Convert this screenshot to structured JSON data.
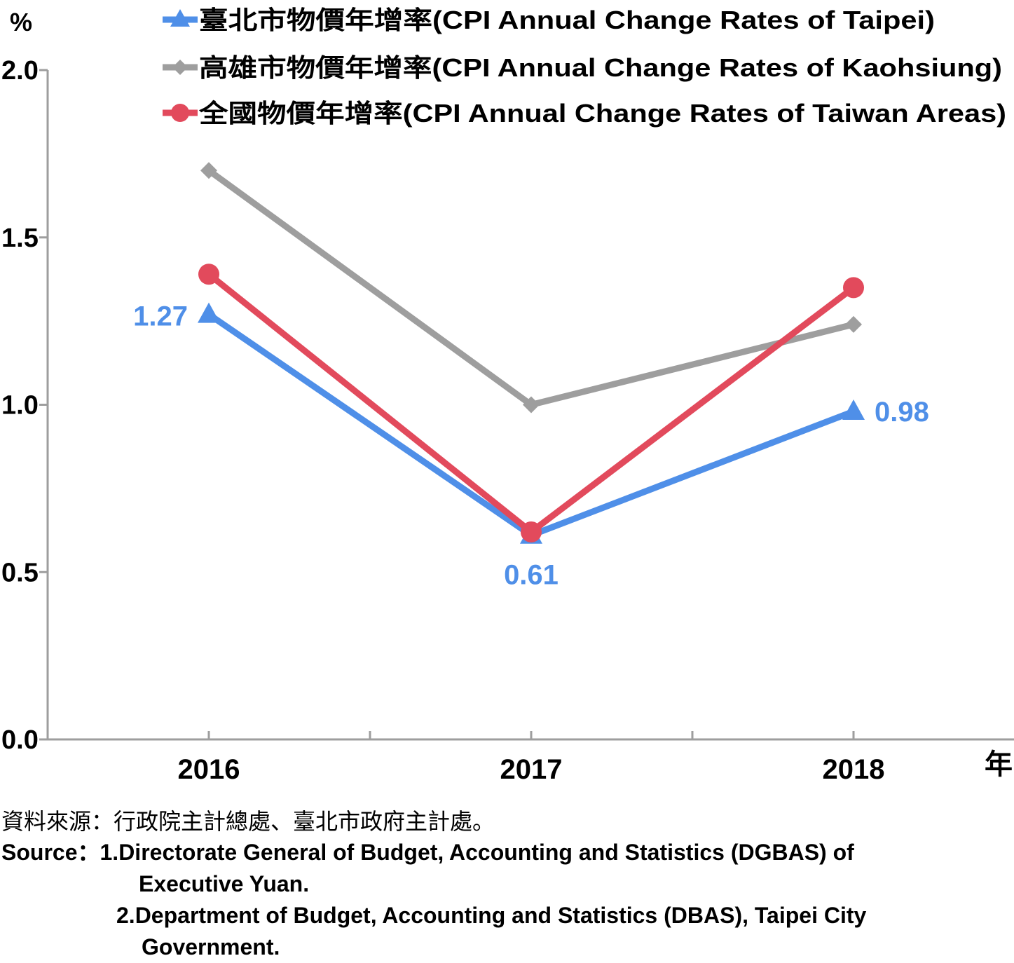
{
  "chart_data": {
    "type": "line",
    "y_unit": "%",
    "x_unit": "年",
    "categories": [
      "2016",
      "2017",
      "2018"
    ],
    "ylim": [
      0.0,
      2.0
    ],
    "yticks": [
      "0.0",
      "0.5",
      "1.0",
      "1.5",
      "2.0"
    ],
    "grid": false,
    "legend_position": "top-right",
    "series": [
      {
        "name": "臺北市物價年增率(CPI Annual Change Rates of Taipei)",
        "values": [
          1.27,
          0.61,
          0.98
        ],
        "value_labels": [
          "1.27",
          "0.61",
          "0.98"
        ],
        "color": "#4f8fe8",
        "marker": "triangle"
      },
      {
        "name": "高雄市物價年增率(CPI Annual Change Rates of Kaohsiung)",
        "values": [
          1.7,
          1.0,
          1.24
        ],
        "color": "#9e9e9e",
        "marker": "diamond"
      },
      {
        "name": "全國物價年增率(CPI Annual Change Rates of Taiwan Areas)",
        "values": [
          1.39,
          0.62,
          1.35
        ],
        "color": "#e24a5c",
        "marker": "circle"
      }
    ]
  },
  "source": {
    "zh": "資料來源：行政院主計總處、臺北市政府主計處。",
    "en_lead": "Source：",
    "en_item1_line1": "1.Directorate General of Budget, Accounting and Statistics (DGBAS) of",
    "en_item1_line2": "Executive Yuan.",
    "en_item2_line1": "2.Department of Budget, Accounting and Statistics (DBAS), Taipei City",
    "en_item2_line2": "Government."
  }
}
